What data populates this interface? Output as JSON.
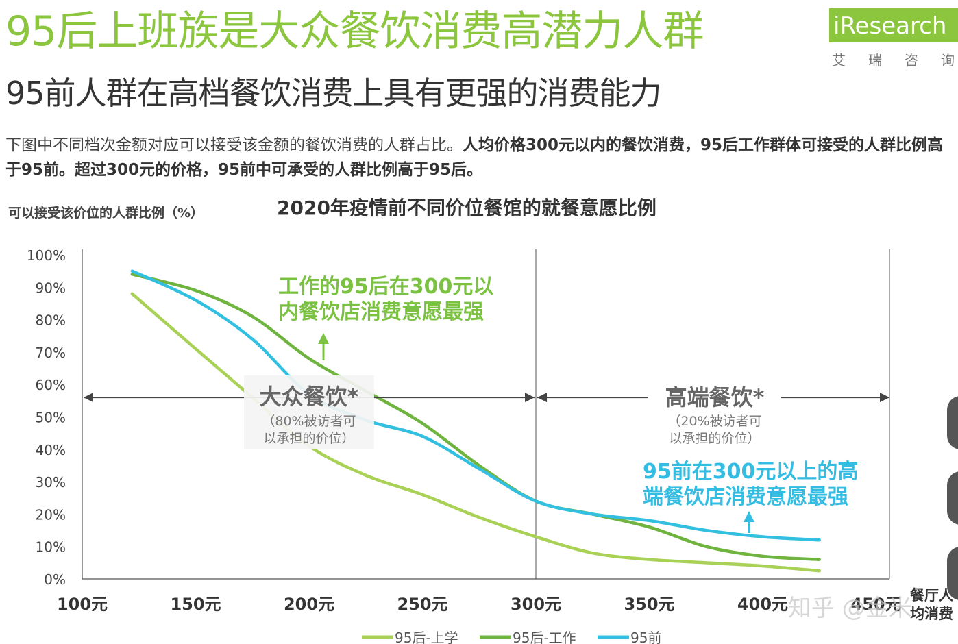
{
  "header": {
    "title": "95后上班族是大众餐饮消费高潜力人群",
    "subtitle": "95前人群在高档餐饮消费上具有更强的消费能力",
    "logo": "iResearch",
    "logo_sub": "艾瑞咨询"
  },
  "description": {
    "normal": "下图中不同档次金额对应可以接受该金额的餐饮消费的人群占比。",
    "bold": "人均价格300元以内的餐饮消费，95后工作群体可接受的人群比例高于95前。超过300元的价格，95前中可承受的人群比例高于95后。"
  },
  "watermark": "知乎 @金米",
  "chart_data": {
    "type": "line",
    "title": "2020年疫情前不同价位餐馆的就餐意愿比例",
    "ylabel": "可以接受该价位的人群比例（%）",
    "xlabel": "餐厅人均消费（元）",
    "x_ticks": [
      "100元",
      "150元",
      "200元",
      "250元",
      "300元",
      "350元",
      "400元",
      "450元"
    ],
    "y_ticks": [
      "0%",
      "10%",
      "20%",
      "30%",
      "40%",
      "50%",
      "60%",
      "70%",
      "80%",
      "90%",
      "100%"
    ],
    "ylim": [
      0,
      100
    ],
    "xlim": [
      100,
      455
    ],
    "series": [
      {
        "name": "95后-上学",
        "color": "#a8d155",
        "x": [
          122,
          150,
          175,
          200,
          225,
          250,
          275,
          300,
          325,
          350,
          375,
          400,
          425
        ],
        "y": [
          88,
          71,
          56,
          41,
          32,
          26,
          19,
          13,
          8,
          6,
          5,
          4,
          2.5
        ]
      },
      {
        "name": "95后-工作",
        "color": "#6fb43f",
        "x": [
          122,
          150,
          175,
          200,
          225,
          250,
          275,
          300,
          325,
          350,
          375,
          400,
          425
        ],
        "y": [
          94,
          89,
          81,
          68,
          58,
          48,
          35,
          24,
          20,
          16,
          10,
          7,
          6
        ]
      },
      {
        "name": "95前",
        "color": "#33c0e0",
        "x": [
          122,
          150,
          175,
          200,
          225,
          250,
          275,
          300,
          325,
          350,
          375,
          400,
          425
        ],
        "y": [
          95,
          86,
          74,
          57,
          49,
          44,
          34,
          24,
          20,
          18,
          15,
          13,
          12
        ]
      }
    ],
    "annotations": {
      "mass_title": "大众餐饮*",
      "mass_note_1": "（80%被访者可",
      "mass_note_2": "以承担的价位）",
      "high_title": "高端餐饮*",
      "high_note_1": "（20%被访者可",
      "high_note_2": "以承担的价位）",
      "post95_work_1": "工作的95后在300元以",
      "post95_work_2": "内餐饮店消费意愿最强",
      "pre95_1": "95前在300元以上的高",
      "pre95_2": "端餐饮店消费意愿最强"
    },
    "colors": {
      "accent_green": "#8cc63f",
      "annotation_green": "#7cc242",
      "annotation_blue": "#33bde3"
    }
  }
}
